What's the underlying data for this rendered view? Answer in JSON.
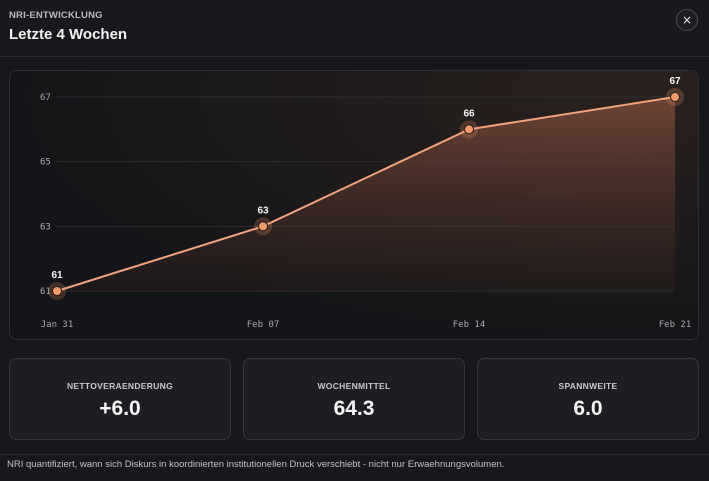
{
  "header": {
    "eyebrow": "NRI-ENTWICKLUNG",
    "title": "Letzte 4 Wochen",
    "close_label": "×"
  },
  "chart_data": {
    "type": "area",
    "x": [
      "Jan 31",
      "Feb 07",
      "Feb 14",
      "Feb 21"
    ],
    "values": [
      61,
      63,
      66,
      67
    ],
    "data_labels": [
      "61",
      "63",
      "66",
      "67"
    ],
    "y_ticks": [
      "61",
      "63",
      "65",
      "67"
    ],
    "ylim": [
      61,
      67
    ],
    "title": "",
    "xlabel": "",
    "ylabel": "",
    "grid": true,
    "colors": {
      "line": "#f0a27c",
      "point": "#f39a6a",
      "fill": "#7a4a3a"
    }
  },
  "stats": [
    {
      "label": "NETTOVERAENDERUNG",
      "value": "+6.0"
    },
    {
      "label": "WOCHENMITTEL",
      "value": "64.3"
    },
    {
      "label": "SPANNWEITE",
      "value": "6.0"
    }
  ],
  "footnote": "NRI quantifiziert, wann sich Diskurs in koordinierten institutionellen Druck verschiebt - nicht nur Erwaehnungsvolumen."
}
